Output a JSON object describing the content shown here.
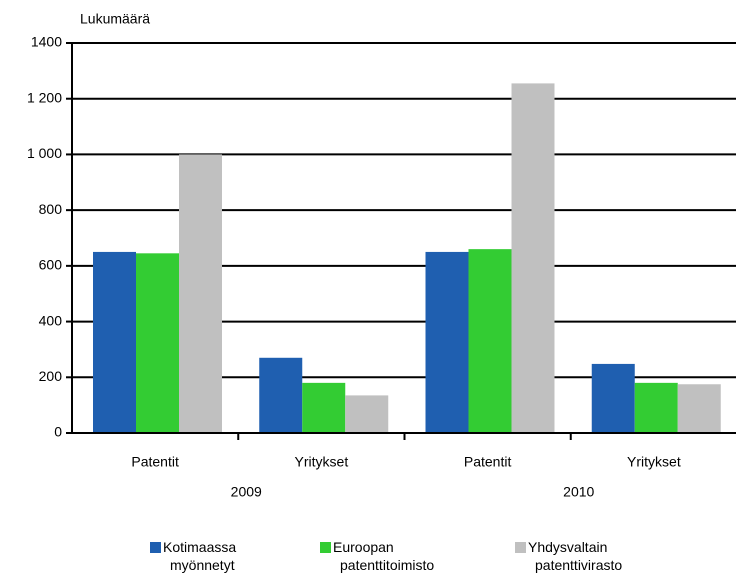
{
  "chart_data": {
    "type": "bar",
    "y_axis_label": "Lukumäärä",
    "categories": [
      "Patentit",
      "Yritykset",
      "Patentit",
      "Yritykset"
    ],
    "group_labels": [
      "2009",
      "2010"
    ],
    "series": [
      {
        "name": "Kotimaassa myönnetyt",
        "color": "#1f5fb0",
        "values": [
          650,
          270,
          650,
          248
        ]
      },
      {
        "name": "Euroopan patenttitoimisto",
        "color": "#33cc33",
        "values": [
          645,
          180,
          660,
          180
        ]
      },
      {
        "name": "Yhdysvaltain patenttivirasto",
        "color": "#c0c0c0",
        "values": [
          1000,
          135,
          1255,
          175
        ]
      }
    ],
    "ylim": [
      0,
      1400
    ],
    "yticks": [
      0,
      200,
      400,
      600,
      800,
      {
        "value": 1000,
        "label": "1 000"
      },
      {
        "value": 1200,
        "label": "1 200"
      },
      1400
    ],
    "grid": true
  }
}
